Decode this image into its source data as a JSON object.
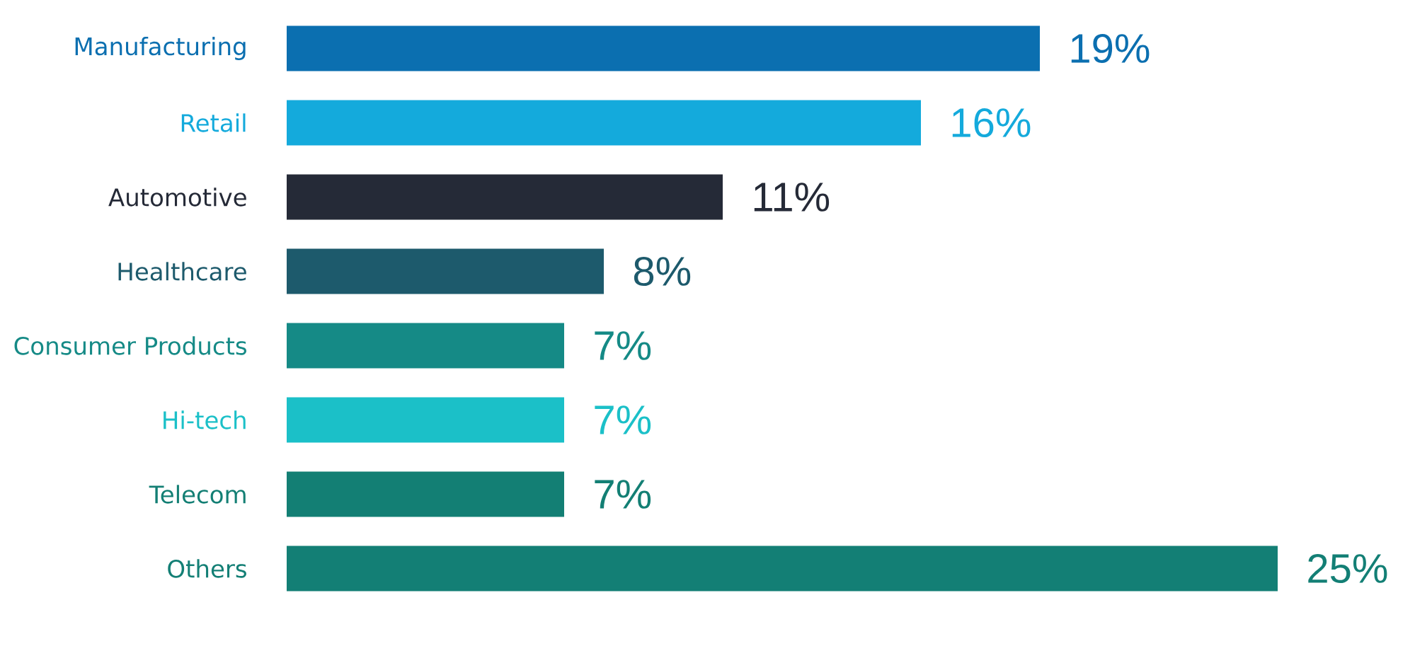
{
  "chart_data": {
    "type": "bar",
    "orientation": "horizontal",
    "categories": [
      "Manufacturing",
      "Retail",
      "Automotive",
      "Healthcare",
      "Consumer Products",
      "Hi-tech",
      "Telecom",
      "Others"
    ],
    "values": [
      19,
      16,
      11,
      8,
      7,
      7,
      7,
      25
    ],
    "colors": [
      "#0b6fb0",
      "#14aadc",
      "#252a37",
      "#1d5a6c",
      "#158a86",
      "#1bc0c8",
      "#137f74",
      "#137f75"
    ],
    "value_labels": [
      "19%",
      "16%",
      "11%",
      "8%",
      "7%",
      "7%",
      "7%",
      "25%"
    ],
    "tick_labels": "y"
  }
}
